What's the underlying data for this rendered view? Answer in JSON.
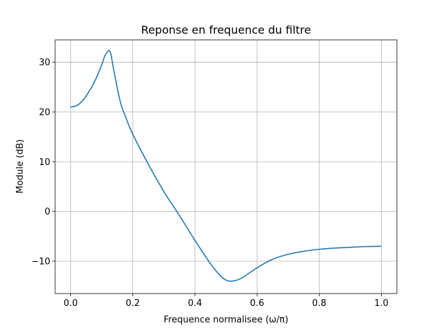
{
  "chart_data": {
    "type": "line",
    "title": "Reponse en frequence du filtre",
    "xlabel": "Frequence normalisee (ω/π)",
    "ylabel": "Module (dB)",
    "xlim": [
      -0.05,
      1.05
    ],
    "ylim": [
      -16.5,
      34.5
    ],
    "xticks": [
      0.0,
      0.2,
      0.4,
      0.6,
      0.8,
      1.0
    ],
    "xtick_labels": [
      "0.0",
      "0.2",
      "0.4",
      "0.6",
      "0.8",
      "1.0"
    ],
    "yticks": [
      -10,
      0,
      10,
      20,
      30
    ],
    "ytick_labels": [
      "−10",
      "0",
      "10",
      "20",
      "30"
    ],
    "grid": true,
    "series": [
      {
        "color": "#1f77b4",
        "x": [
          0.0,
          0.02,
          0.04,
          0.06,
          0.08,
          0.1,
          0.11,
          0.12,
          0.125,
          0.13,
          0.14,
          0.16,
          0.18,
          0.2,
          0.25,
          0.3,
          0.35,
          0.4,
          0.45,
          0.48,
          0.5,
          0.52,
          0.55,
          0.6,
          0.65,
          0.7,
          0.75,
          0.8,
          0.85,
          0.9,
          0.95,
          1.0
        ],
        "y": [
          21.0,
          21.3,
          22.4,
          24.2,
          26.5,
          29.5,
          31.3,
          32.2,
          32.3,
          31.5,
          28.0,
          22.0,
          18.5,
          15.5,
          9.5,
          4.0,
          -0.8,
          -5.8,
          -10.5,
          -12.8,
          -13.8,
          -14.0,
          -13.4,
          -11.3,
          -9.6,
          -8.6,
          -8.0,
          -7.6,
          -7.35,
          -7.2,
          -7.05,
          -7.0
        ]
      }
    ]
  }
}
